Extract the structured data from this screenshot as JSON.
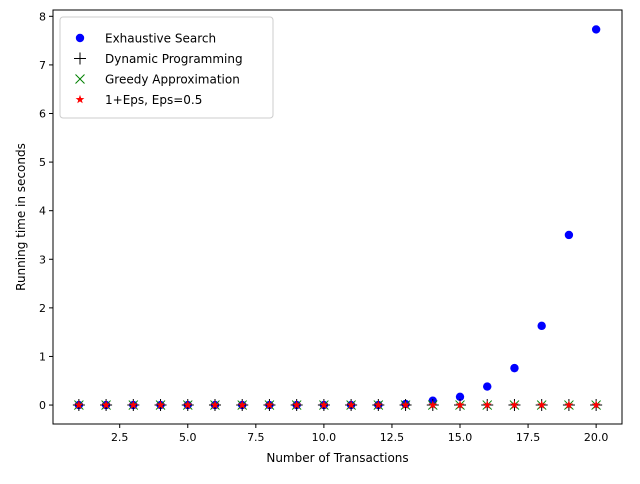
{
  "chart_data": {
    "type": "scatter",
    "title": "",
    "xlabel": "Number of Transactions",
    "ylabel": "Running time in seconds",
    "xlim": [
      0.05,
      20.95
    ],
    "ylim": [
      -0.39,
      8.13
    ],
    "grid": false,
    "legend_position": "upper-left",
    "x_ticks": [
      {
        "value": 2.5,
        "label": "2.5"
      },
      {
        "value": 5.0,
        "label": "5.0"
      },
      {
        "value": 7.5,
        "label": "7.5"
      },
      {
        "value": 10.0,
        "label": "10.0"
      },
      {
        "value": 12.5,
        "label": "12.5"
      },
      {
        "value": 15.0,
        "label": "15.0"
      },
      {
        "value": 17.5,
        "label": "17.5"
      },
      {
        "value": 20.0,
        "label": "20.0"
      }
    ],
    "y_ticks": [
      {
        "value": 0,
        "label": "0"
      },
      {
        "value": 1,
        "label": "1"
      },
      {
        "value": 2,
        "label": "2"
      },
      {
        "value": 3,
        "label": "3"
      },
      {
        "value": 4,
        "label": "4"
      },
      {
        "value": 5,
        "label": "5"
      },
      {
        "value": 6,
        "label": "6"
      },
      {
        "value": 7,
        "label": "7"
      },
      {
        "value": 8,
        "label": "8"
      }
    ],
    "x": [
      1,
      2,
      3,
      4,
      5,
      6,
      7,
      8,
      9,
      10,
      11,
      12,
      13,
      14,
      15,
      16,
      17,
      18,
      19,
      20
    ],
    "series": [
      {
        "name": "Exhaustive Search",
        "marker": "circle",
        "color": "#0000ff",
        "values": [
          0,
          0,
          0,
          0,
          0,
          0,
          0,
          0,
          0,
          0,
          0,
          0,
          0.02,
          0.09,
          0.17,
          0.38,
          0.76,
          1.63,
          3.5,
          7.73
        ]
      },
      {
        "name": "Dynamic Programming",
        "marker": "plus",
        "color": "#000000",
        "values": [
          0,
          0,
          0,
          0,
          0,
          0,
          0,
          0,
          0,
          0,
          0,
          0,
          0,
          0,
          0,
          0,
          0,
          0,
          0,
          0
        ]
      },
      {
        "name": "Greedy Approximation",
        "marker": "x",
        "color": "#008000",
        "values": [
          0,
          0,
          0,
          0,
          0,
          0,
          0,
          0,
          0,
          0,
          0,
          0,
          0,
          0,
          0,
          0,
          0,
          0,
          0,
          0
        ]
      },
      {
        "name": "1+Eps, Eps=0.5",
        "marker": "star",
        "color": "#ff0000",
        "values": [
          0,
          0,
          0,
          0,
          0,
          0,
          0,
          0,
          0,
          0,
          0,
          0,
          0,
          0,
          0,
          0,
          0,
          0,
          0,
          0
        ]
      }
    ]
  }
}
